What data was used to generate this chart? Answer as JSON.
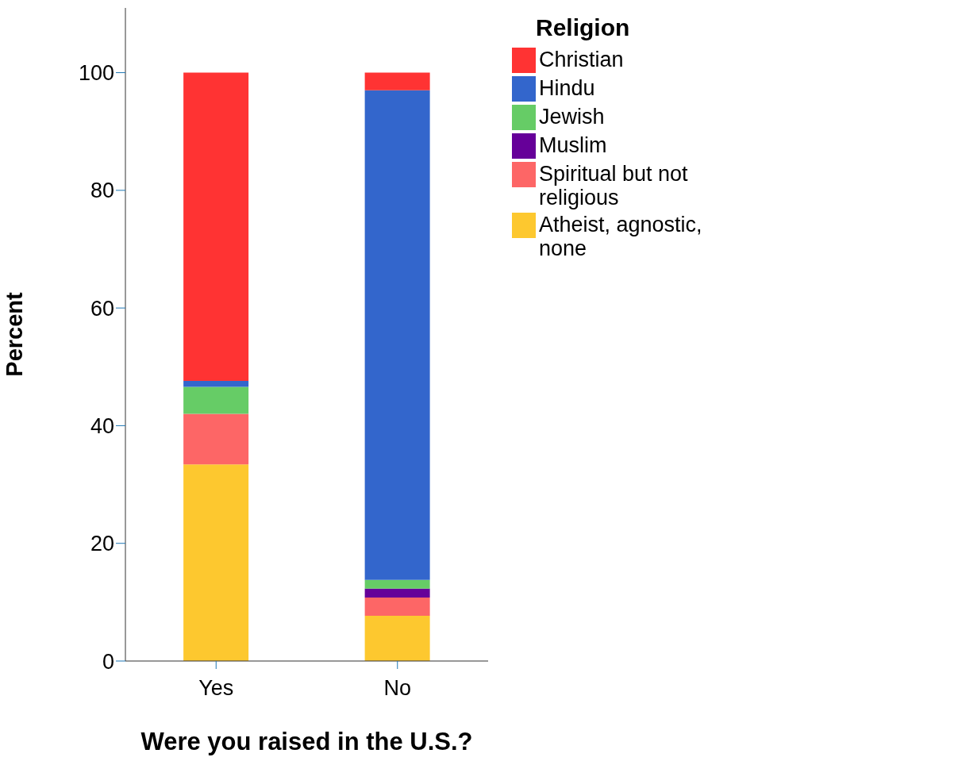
{
  "chart_data": {
    "type": "bar",
    "stacked": true,
    "xlabel": "Were you raised in the U.S.?",
    "ylabel": "Percent",
    "legend_title": "Religion",
    "legend": "top right",
    "categories": [
      "Yes",
      "No"
    ],
    "ylim": [
      0,
      111
    ],
    "yticks": [
      0,
      20,
      40,
      60,
      80,
      100
    ],
    "series": [
      {
        "name": "Atheist, agnostic, none",
        "color": "#fdc82f",
        "values": [
          33.4,
          7.7
        ]
      },
      {
        "name": "Spiritual but not religious",
        "color": "#fd6666",
        "values": [
          8.6,
          3.1
        ]
      },
      {
        "name": "Muslim",
        "color": "#660099",
        "values": [
          0,
          1.5
        ]
      },
      {
        "name": "Jewish",
        "color": "#66cc66",
        "values": [
          4.6,
          1.5
        ]
      },
      {
        "name": "Hindu",
        "color": "#3366cc",
        "values": [
          1.0,
          83.2
        ]
      },
      {
        "name": "Christian",
        "color": "#ff3333",
        "values": [
          52.4,
          3.0
        ]
      }
    ]
  }
}
